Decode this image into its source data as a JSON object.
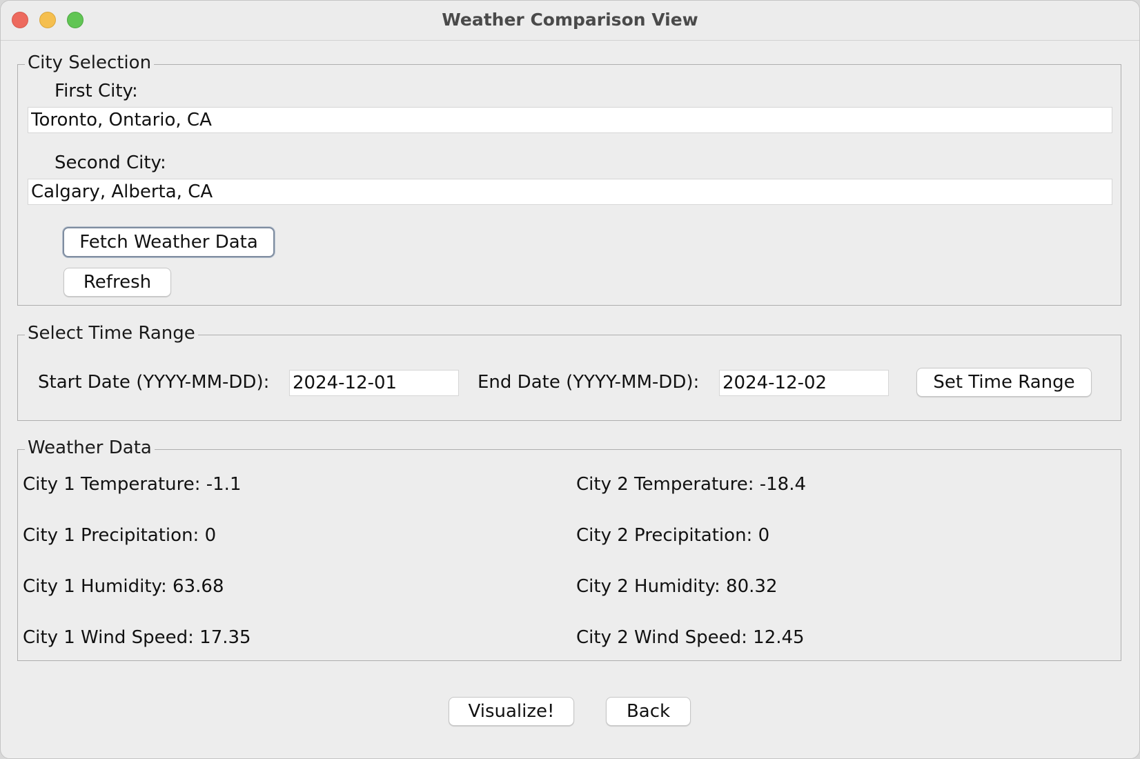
{
  "window": {
    "title": "Weather Comparison View"
  },
  "city_selection": {
    "title": "City Selection",
    "first_city_label": "First City:",
    "first_city_value": "Toronto, Ontario, CA",
    "second_city_label": "Second City:",
    "second_city_value": "Calgary, Alberta, CA",
    "fetch_button": "Fetch Weather Data",
    "refresh_button": "Refresh"
  },
  "time_range": {
    "title": "Select Time Range",
    "start_label": "Start Date (YYYY-MM-DD):",
    "start_value": "2024-12-01",
    "end_label": "End Date (YYYY-MM-DD):",
    "end_value": "2024-12-02",
    "set_button": "Set Time Range"
  },
  "weather_data": {
    "title": "Weather Data",
    "city1": {
      "temperature": "City 1 Temperature: -1.1",
      "precipitation": "City 1 Precipitation: 0",
      "humidity": "City 1 Humidity: 63.68",
      "wind_speed": "City 1 Wind Speed: 17.35"
    },
    "city2": {
      "temperature": "City 2 Temperature: -18.4",
      "precipitation": "City 2 Precipitation: 0",
      "humidity": "City 2 Humidity: 80.32",
      "wind_speed": "City 2 Wind Speed: 12.45"
    }
  },
  "footer": {
    "visualize_button": "Visualize!",
    "back_button": "Back"
  }
}
